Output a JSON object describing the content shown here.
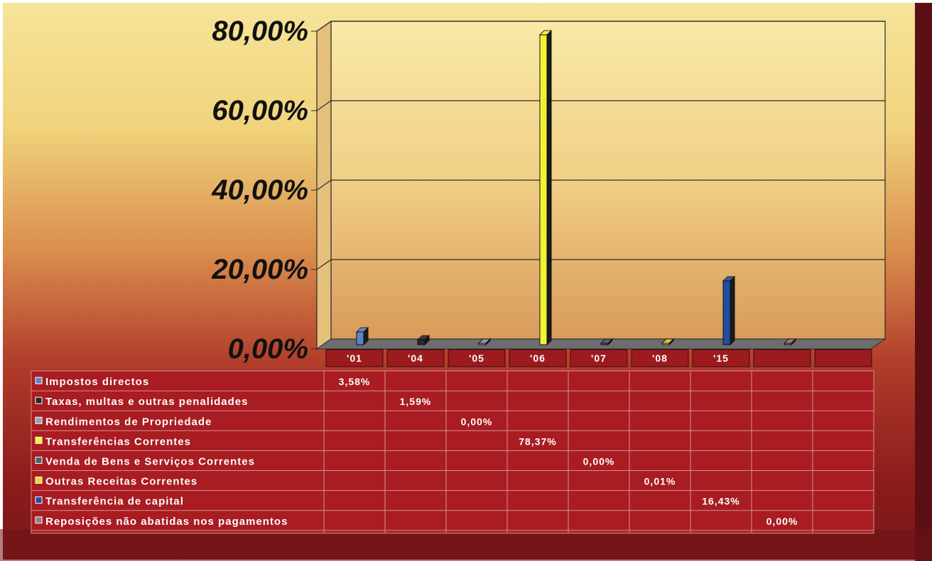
{
  "chart_data": {
    "type": "bar",
    "categories": [
      "'01",
      "'04",
      "'05",
      "'06",
      "'07",
      "'08",
      "'15",
      ""
    ],
    "ylim": [
      0,
      80
    ],
    "yticks": [
      "0,00%",
      "20,00%",
      "40,00%",
      "60,00%",
      "80,00%"
    ],
    "grid": true,
    "legend": "data-table-left",
    "series": [
      {
        "name": "Impostos directos",
        "value": 3.58,
        "label": "3,58%",
        "color": "#5b84c4"
      },
      {
        "name": "Taxas, multas e outras penalidades",
        "value": 1.59,
        "label": "1,59%",
        "color": "#2a2a2a"
      },
      {
        "name": "Rendimentos de Propriedade",
        "value": 0.0,
        "label": "0,00%",
        "color": "#8fa3b8"
      },
      {
        "name": "Transferências Correntes",
        "value": 78.37,
        "label": "78,37%",
        "color": "#f2f235"
      },
      {
        "name": "Venda de Bens e Serviços Correntes",
        "value": 0.0,
        "label": "0,00%",
        "color": "#4a5f7a"
      },
      {
        "name": "Outras Receitas Correntes",
        "value": 0.01,
        "label": "0,01%",
        "color": "#e8d83a"
      },
      {
        "name": "Transferência de capital",
        "value": 16.43,
        "label": "16,43%",
        "color": "#1f4f9e"
      },
      {
        "name": "Reposições não abatidas nos pagamentos",
        "value": 0.0,
        "label": "0,00%",
        "color": "#9a7a88"
      }
    ]
  }
}
